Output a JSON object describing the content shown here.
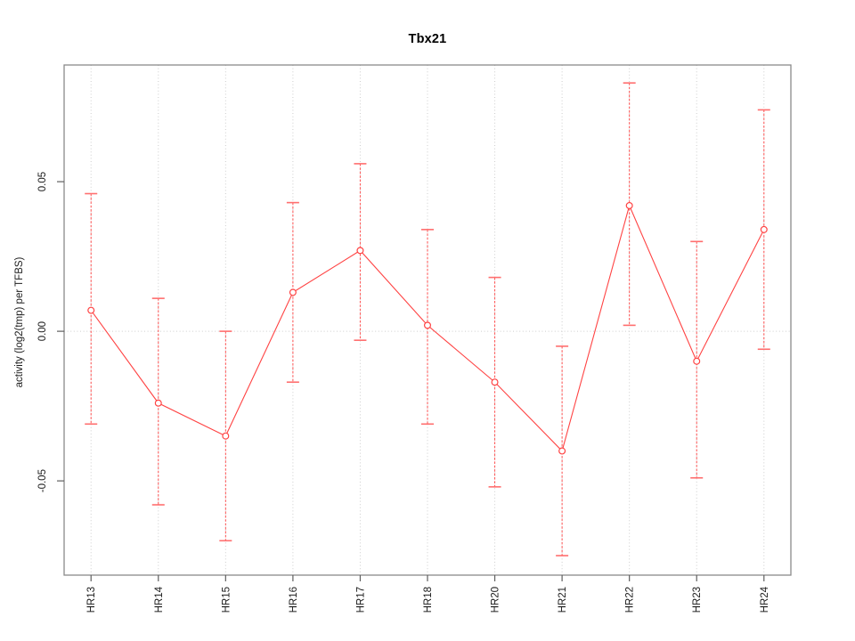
{
  "chart_data": {
    "type": "line",
    "title": "Tbx21",
    "xlabel": "",
    "ylabel": "activity (log2(tmp) per TFBS)",
    "categories": [
      "HR13",
      "HR14",
      "HR15",
      "HR16",
      "HR17",
      "HR18",
      "HR20",
      "HR21",
      "HR22",
      "HR23",
      "HR24"
    ],
    "values": [
      0.007,
      -0.024,
      -0.035,
      0.013,
      0.027,
      0.002,
      -0.017,
      -0.04,
      0.042,
      -0.01,
      0.034
    ],
    "error_low": [
      -0.031,
      -0.058,
      -0.07,
      -0.017,
      -0.003,
      -0.031,
      -0.052,
      -0.075,
      0.002,
      -0.049,
      -0.006
    ],
    "error_high": [
      0.046,
      0.011,
      0.0,
      0.043,
      0.056,
      0.034,
      0.018,
      -0.005,
      0.083,
      0.03,
      0.074
    ],
    "ylim": [
      -0.0815,
      0.089
    ],
    "yticks": [
      -0.05,
      0,
      0.05
    ],
    "ytick_labels": [
      "-0.05",
      "0.00",
      "0.05"
    ],
    "marker": "open-circle",
    "grid": {
      "vertical": "dotted line at every category",
      "horizontal": "dotted line at y = 0",
      "legend": "none"
    },
    "colors": {
      "series": "#ff4343",
      "error_bar": "#ff5252",
      "error_cap": "#ff6e6e",
      "grid": "#cdcdcd",
      "box": "#8a8a8a",
      "tick": "#5f5f5f",
      "text": "#1c1c1c",
      "title": "#000000",
      "background": "#ffffff"
    }
  }
}
